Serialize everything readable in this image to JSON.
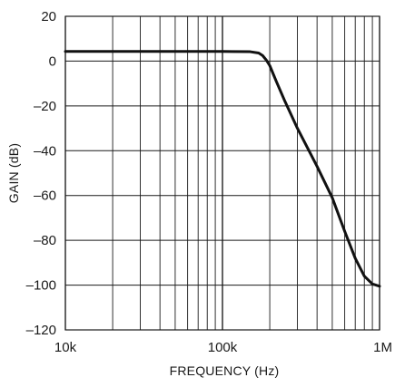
{
  "chart_data": {
    "type": "line",
    "title": "",
    "xlabel": "FREQUENCY (Hz)",
    "ylabel": "GAIN (dB)",
    "x_scale": "log",
    "xlim": [
      10000,
      1000000
    ],
    "ylim": [
      -120,
      20
    ],
    "x_ticks": [
      10000,
      100000,
      1000000
    ],
    "x_tick_labels": [
      "10k",
      "100k",
      "1M"
    ],
    "y_ticks": [
      20,
      0,
      -20,
      -40,
      -60,
      -80,
      -100,
      -120
    ],
    "y_tick_labels": [
      "20",
      "0",
      "–20",
      "–40",
      "–60",
      "–80",
      "–100",
      "–120"
    ],
    "grid": true,
    "legend": "none",
    "line_color": "#111111",
    "series": [
      {
        "x": [
          10000,
          20000,
          50000,
          100000,
          150000,
          170000,
          180000,
          190000,
          200000,
          220000,
          250000,
          300000,
          400000,
          500000,
          600000,
          700000,
          800000,
          900000,
          1000000
        ],
        "y": [
          4.3,
          4.3,
          4.3,
          4.3,
          4.2,
          3.6,
          2.5,
          0.5,
          -2,
          -9,
          -18,
          -30,
          -47,
          -61,
          -76,
          -88,
          -96,
          -99.5,
          -100.5
        ]
      }
    ]
  }
}
